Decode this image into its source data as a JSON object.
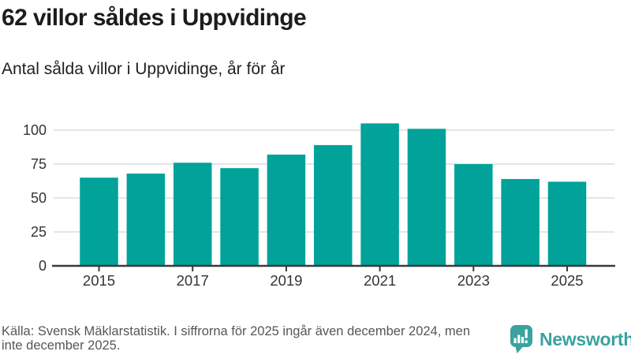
{
  "header": {
    "title": "62 villor såldes i Uppvidinge",
    "subtitle": "Antal sålda villor i Uppvidinge, år för år"
  },
  "chart_data": {
    "type": "bar",
    "categories": [
      2015,
      2016,
      2017,
      2018,
      2019,
      2020,
      2021,
      2022,
      2023,
      2024,
      2025
    ],
    "values": [
      65,
      68,
      76,
      72,
      82,
      89,
      105,
      101,
      75,
      64,
      62
    ],
    "title": "Antal sålda villor i Uppvidinge, år för år",
    "xlabel": "",
    "ylabel": "",
    "ylim": [
      0,
      100
    ],
    "yticks": [
      0,
      25,
      50,
      75,
      100
    ],
    "xticks": [
      2015,
      2017,
      2019,
      2021,
      2023,
      2025
    ],
    "grid": true,
    "legend": "none",
    "bar_color": "#00a29a"
  },
  "footer": {
    "line1": "Källa: Svensk Mäklarstatistik. I siffrorna för 2025 ingår även december 2024, men",
    "line2": "inte december 2025."
  },
  "logo": {
    "text": "Newsworthy",
    "color": "#3ba29f",
    "icon": "newsworthy-chart-bubble-icon"
  },
  "colors": {
    "bar": "#00a29a",
    "gridline": "#e5e5e5",
    "axis_line": "#3a3a3a",
    "axis_label": "#333333",
    "title_text": "#1c1c1a",
    "footer_text": "#55565a",
    "logo_teal": "#3ba29f"
  }
}
